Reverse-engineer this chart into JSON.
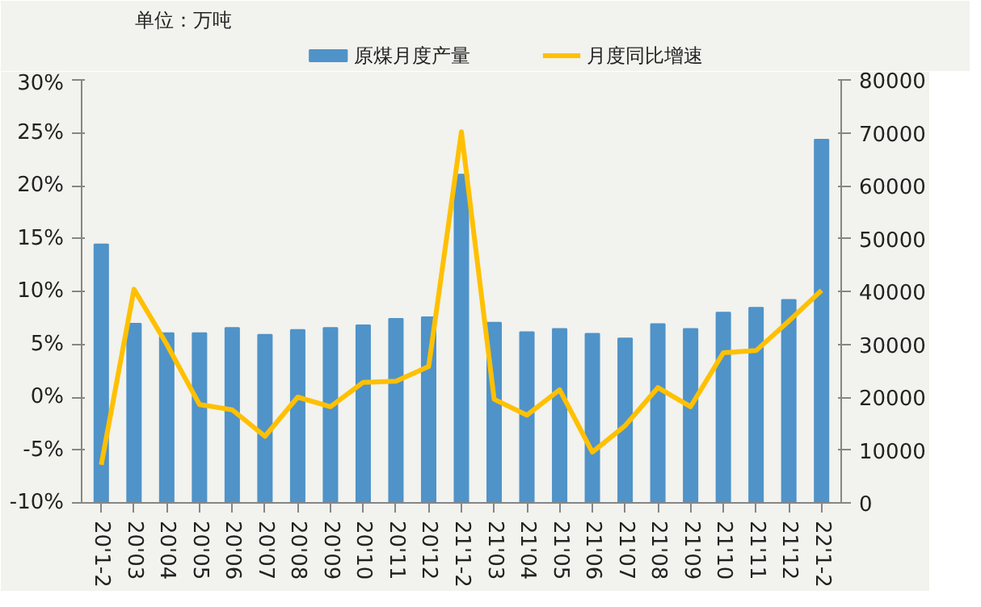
{
  "chart_data": {
    "type": "bar",
    "annotations": [
      "单位：万吨"
    ],
    "categories": [
      "20'1-2",
      "20'03",
      "20'04",
      "20'05",
      "20'06",
      "20'07",
      "20'08",
      "20'09",
      "20'10",
      "20'11",
      "20'12",
      "21'1-2",
      "21'03",
      "21'04",
      "21'05",
      "21'06",
      "21'07",
      "21'08",
      "21'09",
      "21'10",
      "21'11",
      "21'12",
      "22'1-2"
    ],
    "series": [
      {
        "name": "原煤月度产量",
        "axis": "y2",
        "color": "#4f93c9",
        "values": [
          48900,
          33900,
          32100,
          32100,
          33100,
          31800,
          32700,
          33100,
          33600,
          34800,
          35100,
          62100,
          34100,
          32300,
          32900,
          32000,
          31100,
          33800,
          32900,
          36000,
          36900,
          38400,
          68700
        ]
      },
      {
        "name": "月度同比增速",
        "type": "line",
        "axis": "y",
        "color": "#ffc000",
        "values": [
          -6.4,
          10.2,
          5.0,
          -0.7,
          -1.2,
          -3.7,
          0.0,
          -0.9,
          1.4,
          1.5,
          2.9,
          25.1,
          -0.2,
          -1.7,
          0.7,
          -5.2,
          -2.7,
          0.9,
          -0.9,
          4.2,
          4.4,
          7.2,
          10.1
        ]
      }
    ],
    "ylim": [
      -10,
      30
    ],
    "yticks": [
      {
        "value": -10,
        "label": "-10%"
      },
      {
        "value": -5,
        "label": "-5%"
      },
      {
        "value": 0,
        "label": "0%"
      },
      {
        "value": 5,
        "label": "5%"
      },
      {
        "value": 10,
        "label": "10%"
      },
      {
        "value": 15,
        "label": "15%"
      },
      {
        "value": 20,
        "label": "20%"
      },
      {
        "value": 25,
        "label": "25%"
      },
      {
        "value": 30,
        "label": "30%"
      }
    ],
    "y2lim": [
      0,
      80000
    ],
    "y2ticks": [
      0,
      10000,
      20000,
      30000,
      40000,
      50000,
      60000,
      70000,
      80000
    ],
    "legend": "top",
    "grid": false,
    "line_style": "solid"
  }
}
